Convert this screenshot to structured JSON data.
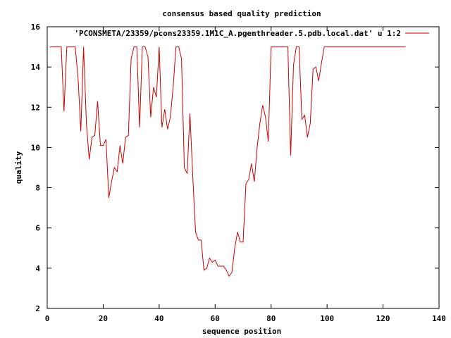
{
  "chart_data": {
    "type": "line",
    "title": "consensus based quality prediction",
    "xlabel": "sequence position",
    "ylabel": "quality",
    "xlim": [
      0,
      140
    ],
    "ylim": [
      2,
      16
    ],
    "xticks": [
      0,
      20,
      40,
      60,
      80,
      100,
      120,
      140
    ],
    "yticks": [
      2,
      4,
      6,
      8,
      10,
      12,
      14,
      16
    ],
    "grid": false,
    "legend_position": "top-right",
    "series": [
      {
        "name": "'PCONSMETA/23359/pcons23359.1M1C_A.pgenthreader.5.pdb.local.dat' u 1:2",
        "color": "#cc0000",
        "x": [
          1,
          2,
          3,
          4,
          5,
          6,
          7,
          8,
          9,
          10,
          11,
          12,
          13,
          14,
          15,
          16,
          17,
          18,
          19,
          20,
          21,
          22,
          23,
          24,
          25,
          26,
          27,
          28,
          29,
          30,
          31,
          32,
          33,
          34,
          35,
          36,
          37,
          38,
          39,
          40,
          41,
          42,
          43,
          44,
          45,
          46,
          47,
          48,
          49,
          50,
          51,
          52,
          53,
          54,
          55,
          56,
          57,
          58,
          59,
          60,
          61,
          62,
          63,
          64,
          65,
          66,
          67,
          68,
          69,
          70,
          71,
          72,
          73,
          74,
          75,
          76,
          77,
          78,
          79,
          80,
          81,
          82,
          83,
          84,
          85,
          86,
          87,
          88,
          89,
          90,
          91,
          92,
          93,
          94,
          95,
          96,
          97,
          98,
          99,
          100,
          101,
          102,
          103,
          104,
          105,
          106,
          107,
          108,
          109,
          110,
          111,
          112,
          113,
          114,
          115,
          116,
          117,
          118,
          119,
          120,
          121,
          122,
          123,
          124,
          125,
          126,
          127,
          128
        ],
        "values": [
          15,
          15,
          15,
          15,
          15,
          11.8,
          15,
          15,
          15,
          15,
          13.5,
          10.8,
          15,
          11.2,
          9.4,
          10.5,
          10.6,
          12.3,
          10.1,
          10.1,
          10.4,
          7.5,
          8.3,
          9,
          8.8,
          10.1,
          9.2,
          10.5,
          10.6,
          14.4,
          15,
          15,
          11,
          15,
          15,
          14.5,
          11.5,
          13,
          12.5,
          15,
          11,
          11.9,
          10.9,
          11.5,
          13,
          15,
          15,
          14.4,
          9,
          8.7,
          11.7,
          8.6,
          5.8,
          5.4,
          5.4,
          3.9,
          4,
          4.5,
          4.3,
          4.4,
          4.1,
          4.1,
          4.1,
          3.9,
          3.6,
          3.8,
          5,
          5.8,
          5.3,
          5.3,
          8.2,
          8.4,
          9.2,
          8.3,
          10,
          11.2,
          12.1,
          11.5,
          10.3,
          15,
          15,
          15,
          15,
          15,
          15,
          15,
          9.6,
          14.1,
          15,
          15,
          11.4,
          11.6,
          10.5,
          11.2,
          13.9,
          14,
          13.3,
          14.2,
          15,
          15,
          15,
          15,
          15,
          15,
          15,
          15,
          15,
          15,
          15,
          15,
          15,
          15,
          15,
          15,
          15,
          15,
          15,
          15,
          15,
          15,
          15,
          15,
          15,
          15,
          15,
          15,
          15,
          15
        ]
      }
    ]
  }
}
